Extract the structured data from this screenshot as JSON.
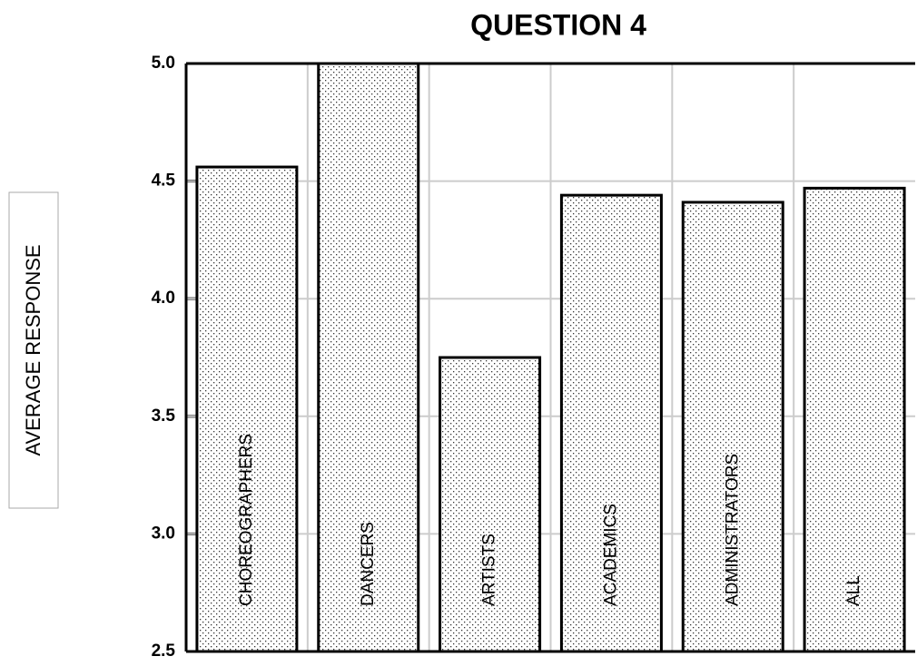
{
  "chart_data": {
    "type": "bar",
    "title": "QUESTION 4",
    "ylabel": "AVERAGE RESPONSE",
    "categories": [
      "CHOREOGRAPHERS",
      "DANCERS",
      "ARTISTS",
      "ACADEMICS",
      "ADMINISTRATORS",
      "ALL"
    ],
    "values": [
      4.56,
      5.0,
      3.75,
      4.44,
      4.41,
      4.47
    ],
    "color": "#ffffff",
    "ylim": [
      2.5,
      5.0
    ],
    "yticks": [
      2.5,
      {
        "value": 3,
        "label": "3.0"
      },
      3.5,
      {
        "value": 4,
        "label": "4.0"
      },
      4.5,
      {
        "value": 5,
        "label": "5.0"
      }
    ],
    "grid": true
  }
}
